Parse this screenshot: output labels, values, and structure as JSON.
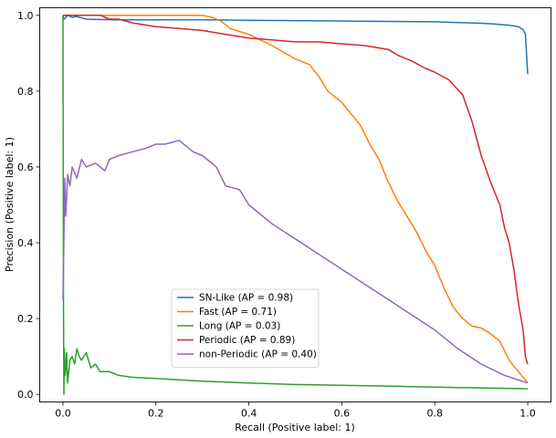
{
  "chart_data": {
    "type": "line",
    "title": "",
    "xlabel": "Recall (Positive label: 1)",
    "ylabel": "Precision (Positive label: 1)",
    "xlim": [
      -0.05,
      1.05
    ],
    "ylim": [
      -0.02,
      1.02
    ],
    "xticks": [
      0.0,
      0.2,
      0.4,
      0.6,
      0.8,
      1.0
    ],
    "xtick_labels": [
      "0.0",
      "0.2",
      "0.4",
      "0.6",
      "0.8",
      "1.0"
    ],
    "yticks": [
      0.0,
      0.2,
      0.4,
      0.6,
      0.8,
      1.0
    ],
    "ytick_labels": [
      "0.0",
      "0.2",
      "0.4",
      "0.6",
      "0.8",
      "1.0"
    ],
    "grid": false,
    "legend_position": "lower-center",
    "series": [
      {
        "name": "SN-Like (AP = 0.98)",
        "color": "#1f77b4",
        "x": [
          0.0,
          0.002,
          0.005,
          0.01,
          0.02,
          0.03,
          0.05,
          0.08,
          0.12,
          0.2,
          0.3,
          0.4,
          0.5,
          0.6,
          0.7,
          0.8,
          0.85,
          0.9,
          0.93,
          0.96,
          0.98,
          0.99,
          0.995,
          1.0
        ],
        "y": [
          1.0,
          0.99,
          0.993,
          1.0,
          0.995,
          0.997,
          0.99,
          0.989,
          0.988,
          0.988,
          0.988,
          0.987,
          0.986,
          0.985,
          0.984,
          0.983,
          0.981,
          0.979,
          0.977,
          0.974,
          0.97,
          0.962,
          0.95,
          0.845
        ]
      },
      {
        "name": "Fast (AP = 0.71)",
        "color": "#ff7f0e",
        "x": [
          0.0,
          0.005,
          0.01,
          0.05,
          0.1,
          0.2,
          0.3,
          0.32,
          0.34,
          0.36,
          0.4,
          0.45,
          0.5,
          0.53,
          0.55,
          0.57,
          0.6,
          0.62,
          0.64,
          0.66,
          0.68,
          0.7,
          0.72,
          0.74,
          0.76,
          0.78,
          0.8,
          0.82,
          0.84,
          0.86,
          0.88,
          0.9,
          0.92,
          0.94,
          0.96,
          0.98,
          1.0
        ],
        "y": [
          1.0,
          1.0,
          1.0,
          1.0,
          1.0,
          1.0,
          1.0,
          0.995,
          0.985,
          0.965,
          0.95,
          0.92,
          0.885,
          0.87,
          0.84,
          0.8,
          0.77,
          0.74,
          0.71,
          0.66,
          0.62,
          0.56,
          0.51,
          0.47,
          0.43,
          0.38,
          0.34,
          0.28,
          0.23,
          0.2,
          0.18,
          0.175,
          0.16,
          0.14,
          0.09,
          0.06,
          0.03
        ]
      },
      {
        "name": "Long (AP = 0.03)",
        "color": "#2ca02c",
        "x": [
          0.0,
          0.001,
          0.002,
          0.003,
          0.005,
          0.008,
          0.01,
          0.015,
          0.02,
          0.025,
          0.03,
          0.035,
          0.04,
          0.05,
          0.06,
          0.07,
          0.08,
          0.1,
          0.12,
          0.15,
          0.2,
          0.3,
          0.4,
          0.5,
          0.6,
          0.7,
          0.8,
          0.9,
          1.0
        ],
        "y": [
          1.0,
          0.25,
          0.0,
          0.12,
          0.05,
          0.11,
          0.03,
          0.09,
          0.1,
          0.08,
          0.12,
          0.1,
          0.09,
          0.11,
          0.07,
          0.08,
          0.06,
          0.06,
          0.05,
          0.045,
          0.042,
          0.035,
          0.03,
          0.026,
          0.024,
          0.022,
          0.019,
          0.017,
          0.015
        ]
      },
      {
        "name": "Periodic (AP = 0.89)",
        "color": "#d62728",
        "x": [
          0.0,
          0.002,
          0.005,
          0.02,
          0.05,
          0.08,
          0.1,
          0.12,
          0.15,
          0.2,
          0.25,
          0.3,
          0.35,
          0.4,
          0.45,
          0.5,
          0.55,
          0.6,
          0.65,
          0.7,
          0.72,
          0.75,
          0.78,
          0.8,
          0.83,
          0.86,
          0.88,
          0.9,
          0.92,
          0.94,
          0.95,
          0.96,
          0.97,
          0.98,
          0.99,
          0.995,
          1.0
        ],
        "y": [
          1.0,
          1.0,
          1.0,
          1.0,
          1.0,
          1.0,
          0.99,
          0.99,
          0.98,
          0.97,
          0.965,
          0.96,
          0.95,
          0.94,
          0.935,
          0.93,
          0.93,
          0.925,
          0.92,
          0.91,
          0.895,
          0.88,
          0.86,
          0.85,
          0.83,
          0.79,
          0.72,
          0.63,
          0.56,
          0.5,
          0.44,
          0.4,
          0.33,
          0.24,
          0.17,
          0.1,
          0.08
        ]
      },
      {
        "name": "non-Periodic (AP = 0.40)",
        "color": "#9467bd",
        "x": [
          0.0,
          0.002,
          0.004,
          0.006,
          0.008,
          0.01,
          0.015,
          0.02,
          0.03,
          0.04,
          0.05,
          0.07,
          0.09,
          0.1,
          0.12,
          0.15,
          0.18,
          0.2,
          0.22,
          0.25,
          0.26,
          0.27,
          0.28,
          0.3,
          0.33,
          0.35,
          0.38,
          0.4,
          0.45,
          0.5,
          0.55,
          0.6,
          0.65,
          0.7,
          0.75,
          0.8,
          0.85,
          0.9,
          0.95,
          1.0
        ],
        "y": [
          0.25,
          0.41,
          0.57,
          0.47,
          0.52,
          0.58,
          0.55,
          0.6,
          0.57,
          0.62,
          0.6,
          0.61,
          0.59,
          0.62,
          0.63,
          0.64,
          0.65,
          0.66,
          0.66,
          0.67,
          0.66,
          0.65,
          0.64,
          0.63,
          0.6,
          0.55,
          0.54,
          0.5,
          0.45,
          0.41,
          0.37,
          0.33,
          0.29,
          0.25,
          0.21,
          0.17,
          0.12,
          0.08,
          0.05,
          0.03
        ]
      }
    ]
  }
}
